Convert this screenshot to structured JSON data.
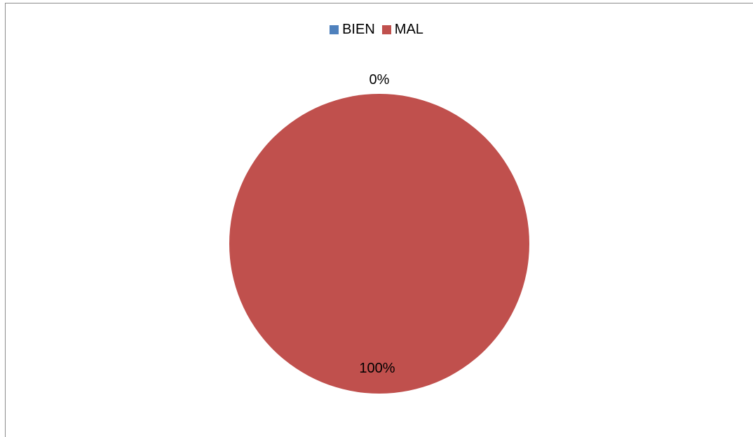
{
  "chart_data": {
    "type": "pie",
    "categories": [
      "BIEN",
      "MAL"
    ],
    "values": [
      0,
      100
    ],
    "data_labels": [
      "0%",
      "100%"
    ],
    "colors": [
      "#4f81bd",
      "#c0504d"
    ],
    "legend_position": "top",
    "title": ""
  }
}
